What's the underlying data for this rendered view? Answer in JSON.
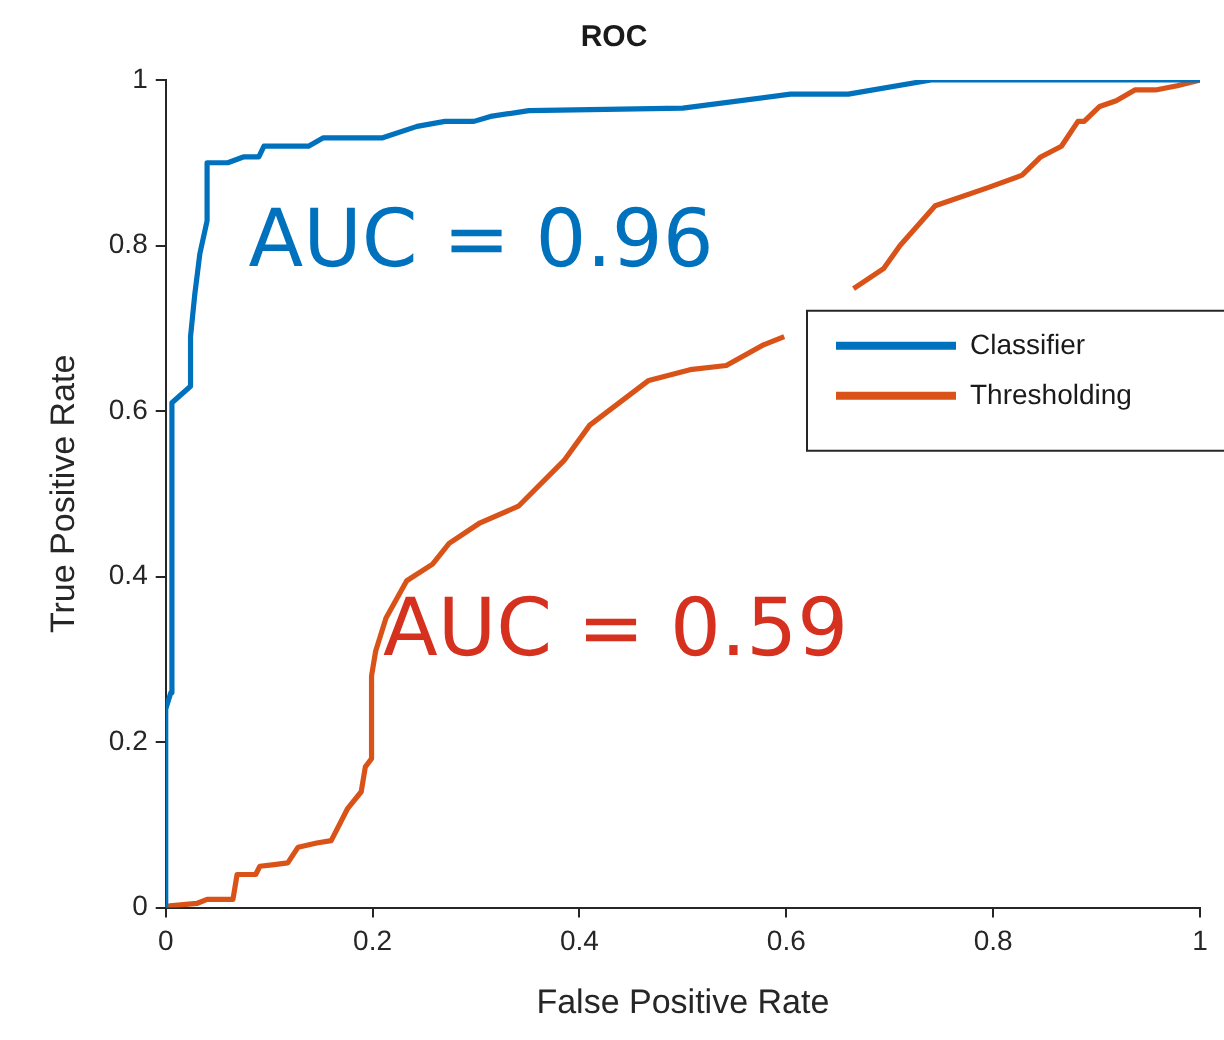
{
  "chart_data": {
    "type": "line",
    "title": "ROC",
    "xlabel": "False Positive Rate",
    "ylabel": "True Positive Rate",
    "xlim": [
      0,
      1
    ],
    "ylim": [
      0,
      1
    ],
    "xticks": [
      0,
      0.2,
      0.4,
      0.6,
      0.8,
      1
    ],
    "yticks": [
      0,
      0.2,
      0.4,
      0.6,
      0.8,
      1
    ],
    "grid": false,
    "legend": "right",
    "line_style": "solid",
    "marker": "none",
    "annotations": [
      "AUC = 0.96",
      "AUC = 0.59"
    ],
    "series": [
      {
        "name": "Classifier",
        "color": "#0072bd",
        "x": [
          0,
          0,
          0.005,
          0.006,
          0.024,
          0.024,
          0.028,
          0.033,
          0.04,
          0.04,
          0.06,
          0.075,
          0.09,
          0.095,
          0.138,
          0.152,
          0.209,
          0.243,
          0.27,
          0.298,
          0.314,
          0.351,
          0.5,
          0.604,
          0.66,
          0.74,
          1
        ],
        "values": [
          0,
          0.24,
          0.26,
          0.61,
          0.63,
          0.69,
          0.74,
          0.79,
          0.83,
          0.9,
          0.9,
          0.907,
          0.907,
          0.92,
          0.92,
          0.93,
          0.93,
          0.944,
          0.95,
          0.95,
          0.956,
          0.963,
          0.966,
          0.983,
          0.983,
          1,
          1
        ]
      },
      {
        "name": "Thresholding",
        "color": "#d95319",
        "x": [
          0,
          0.004,
          0.03,
          0.04,
          0.065,
          0.069,
          0.087,
          0.091,
          0.105,
          0.118,
          0.128,
          0.146,
          0.16,
          0.176,
          0.189,
          0.193,
          0.199,
          0.199,
          0.203,
          0.213,
          0.233,
          0.258,
          0.274,
          0.304,
          0.341,
          0.385,
          0.41,
          0.467,
          0.507,
          0.542,
          0.578,
          0.598,
          0.63,
          0.665,
          0.694,
          0.71,
          0.744,
          0.795,
          0.828,
          0.846,
          0.866,
          0.882,
          0.888,
          0.903,
          0.919,
          0.937,
          0.957,
          0.978,
          1
        ],
        "values": [
          0,
          0.002,
          0.005,
          0.01,
          0.01,
          0.04,
          0.04,
          0.05,
          0.052,
          0.054,
          0.073,
          0.078,
          0.081,
          0.12,
          0.14,
          0.17,
          0.18,
          0.28,
          0.31,
          0.35,
          0.395,
          0.415,
          0.44,
          0.465,
          0.485,
          0.54,
          0.583,
          0.637,
          0.65,
          0.655,
          0.68,
          0.69,
          null,
          0.748,
          0.772,
          0.8,
          0.848,
          0.87,
          0.885,
          0.907,
          0.92,
          0.95,
          0.95,
          0.968,
          0.975,
          0.988,
          0.988,
          0.993,
          1
        ]
      }
    ]
  }
}
